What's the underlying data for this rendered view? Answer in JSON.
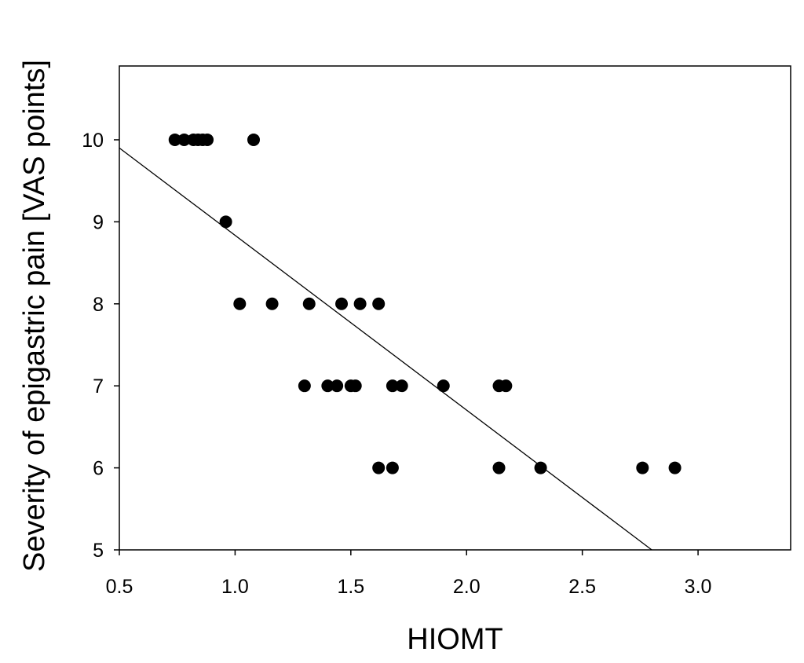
{
  "chart_data": {
    "type": "scatter",
    "title": "",
    "xlabel": "HIOMT",
    "ylabel": "Severity of epigastric pain [VAS points]",
    "xlim": [
      0.5,
      3.4
    ],
    "ylim": [
      5,
      10.9
    ],
    "xticks": [
      "0.5",
      "1.0",
      "1.5",
      "2.0",
      "2.5",
      "3.0"
    ],
    "yticks": [
      "5",
      "6",
      "7",
      "8",
      "9",
      "10"
    ],
    "grid": false,
    "legend": "none",
    "point_color": "#000000",
    "series": [
      {
        "points": [
          {
            "x": 0.74,
            "y": 10
          },
          {
            "x": 0.78,
            "y": 10
          },
          {
            "x": 0.82,
            "y": 10
          },
          {
            "x": 0.84,
            "y": 10
          },
          {
            "x": 0.86,
            "y": 10
          },
          {
            "x": 0.88,
            "y": 10
          },
          {
            "x": 1.08,
            "y": 10
          },
          {
            "x": 0.96,
            "y": 9
          },
          {
            "x": 1.02,
            "y": 8
          },
          {
            "x": 1.16,
            "y": 8
          },
          {
            "x": 1.32,
            "y": 8
          },
          {
            "x": 1.46,
            "y": 8
          },
          {
            "x": 1.54,
            "y": 8
          },
          {
            "x": 1.62,
            "y": 8
          },
          {
            "x": 1.3,
            "y": 7
          },
          {
            "x": 1.4,
            "y": 7
          },
          {
            "x": 1.44,
            "y": 7
          },
          {
            "x": 1.5,
            "y": 7
          },
          {
            "x": 1.52,
            "y": 7
          },
          {
            "x": 1.68,
            "y": 7
          },
          {
            "x": 1.72,
            "y": 7
          },
          {
            "x": 1.9,
            "y": 7
          },
          {
            "x": 2.14,
            "y": 7
          },
          {
            "x": 2.17,
            "y": 7
          },
          {
            "x": 1.62,
            "y": 6
          },
          {
            "x": 1.68,
            "y": 6
          },
          {
            "x": 2.14,
            "y": 6
          },
          {
            "x": 2.32,
            "y": 6
          },
          {
            "x": 2.76,
            "y": 6
          },
          {
            "x": 2.9,
            "y": 6
          }
        ]
      }
    ],
    "regression_line": {
      "x": [
        0.5,
        2.8
      ],
      "y": [
        9.9,
        5.0
      ]
    }
  }
}
